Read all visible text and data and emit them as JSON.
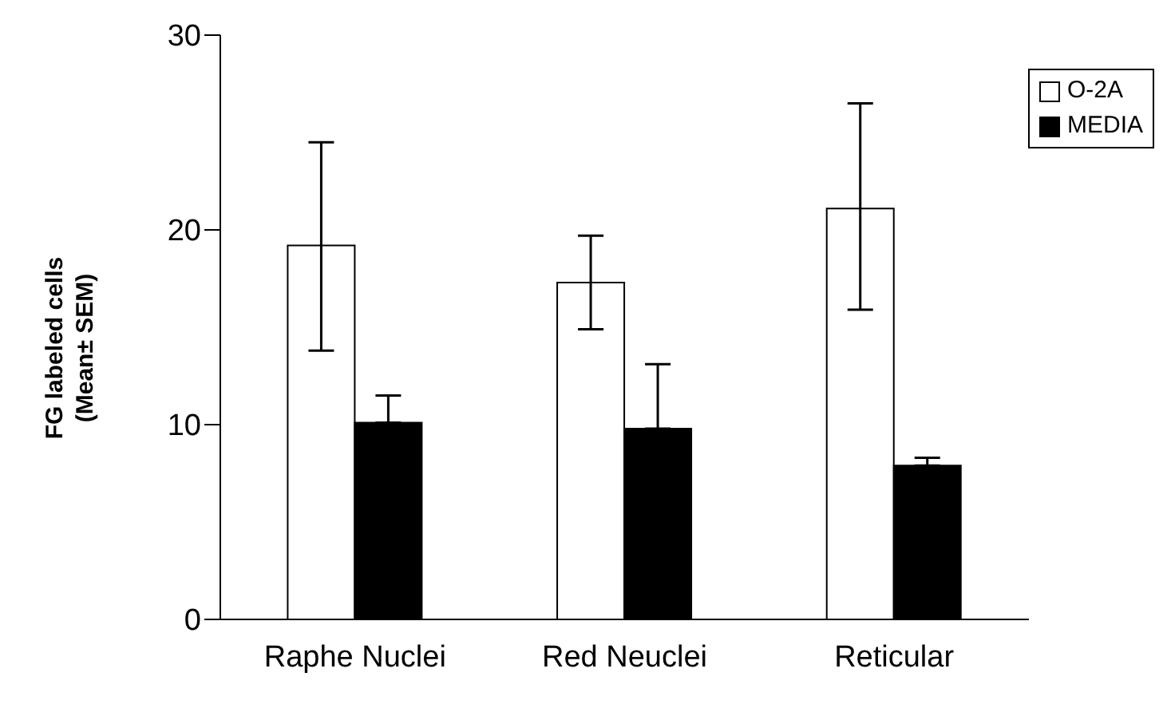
{
  "chart_data": {
    "type": "bar",
    "ylabel": "FG labeled cells\n(Mean± SEM)",
    "categories": [
      "Raphe Nuclei",
      "Red Neuclei",
      "Reticular"
    ],
    "series": [
      {
        "name": "O-2A",
        "color": "#ffffff",
        "values": [
          19.2,
          17.3,
          21.1
        ],
        "errors": [
          [
            13.8,
            24.5
          ],
          [
            14.9,
            19.7
          ],
          [
            15.9,
            26.5
          ]
        ]
      },
      {
        "name": "MEDIA",
        "color": "#000000",
        "values": [
          10.1,
          9.8,
          7.9
        ],
        "errors": [
          [
            10.1,
            11.5
          ],
          [
            9.8,
            13.1
          ],
          [
            7.9,
            8.3
          ]
        ]
      }
    ],
    "ylim": [
      0,
      30
    ],
    "yticks": [
      0,
      10,
      20,
      30
    ],
    "grid": false,
    "legend": "top right"
  }
}
